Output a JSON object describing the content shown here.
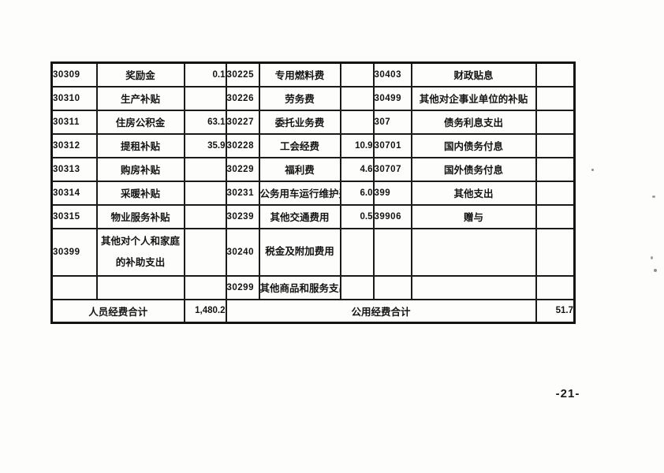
{
  "document": {
    "page_number": "-21-"
  },
  "table": {
    "rows": [
      [
        "30309",
        "奖励金",
        "0.1",
        "30225",
        "专用燃料费",
        "",
        "30403",
        "财政贴息",
        ""
      ],
      [
        "30310",
        "生产补贴",
        "",
        "30226",
        "劳务费",
        "",
        "30499",
        "其他对企事业单位的补贴",
        ""
      ],
      [
        "30311",
        "住房公积金",
        "63.1",
        "30227",
        "委托业务费",
        "",
        "307",
        "债务利息支出",
        ""
      ],
      [
        "30312",
        "提租补贴",
        "35.9",
        "30228",
        "工会经费",
        "10.9",
        "30701",
        "国内债务付息",
        ""
      ],
      [
        "30313",
        "购房补贴",
        "",
        "30229",
        "福利费",
        "4.6",
        "30707",
        "国外债务付息",
        ""
      ],
      [
        "30314",
        "采暖补贴",
        "",
        "30231",
        "公务用车运行维护费",
        "6.0",
        "399",
        "其他支出",
        ""
      ],
      [
        "30315",
        "物业服务补贴",
        "",
        "30239",
        "其他交通费用",
        "0.5",
        "39906",
        "赠与",
        ""
      ],
      [
        "30399",
        "其他对个人和家庭的补助支出",
        "",
        "30240",
        "税金及附加费用",
        "",
        "",
        "",
        ""
      ],
      [
        "",
        "",
        "",
        "30299",
        "其他商品和服务支出",
        "",
        "",
        "",
        ""
      ]
    ],
    "summary_row": {
      "personnel_total_label": "人员经费合计",
      "personnel_total_value": "1,480.2",
      "public_total_label": "公用经费合计",
      "public_total_value": "51.7"
    }
  }
}
